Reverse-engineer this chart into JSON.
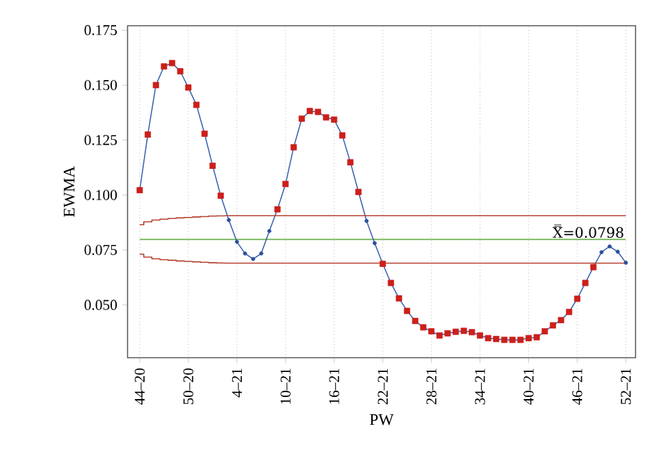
{
  "chart_data": {
    "type": "line",
    "xlabel": "PW",
    "ylabel": "EWMA",
    "categories": [
      "44–20",
      null,
      null,
      null,
      null,
      null,
      "50–20",
      null,
      null,
      null,
      null,
      null,
      "4–21",
      null,
      null,
      null,
      null,
      null,
      "10–21",
      null,
      null,
      null,
      null,
      null,
      "16–21",
      null,
      null,
      null,
      null,
      null,
      "22–21",
      null,
      null,
      null,
      null,
      null,
      "28–21",
      null,
      null,
      null,
      null,
      null,
      "34–21",
      null,
      null,
      null,
      null,
      null,
      "40–21",
      null,
      null,
      null,
      null,
      null,
      "46–21",
      null,
      null,
      null,
      null,
      null,
      "52–21"
    ],
    "series": [
      {
        "color": "#3a62b0",
        "marker": "none",
        "values": [
          0.1022,
          0.1275,
          0.15,
          0.1585,
          0.16,
          0.1563,
          0.1489,
          0.141,
          0.1279,
          0.1133,
          0.0997,
          0.0886,
          0.0787,
          0.0734,
          0.0709,
          0.0734,
          0.0836,
          0.0935,
          0.105,
          0.1217,
          0.1347,
          0.1382,
          0.1378,
          0.1353,
          0.1343,
          0.1271,
          0.1149,
          0.1014,
          0.0882,
          0.0781,
          0.0687,
          0.06,
          0.053,
          0.0473,
          0.0427,
          0.0398,
          0.038,
          0.0361,
          0.0371,
          0.0378,
          0.0382,
          0.0376,
          0.0361,
          0.0349,
          0.0345,
          0.0341,
          0.0341,
          0.0341,
          0.0349,
          0.0353,
          0.038,
          0.0407,
          0.0431,
          0.0468,
          0.0528,
          0.06,
          0.0672,
          0.074,
          0.0766,
          0.0742,
          0.0692
        ]
      },
      {
        "type": "scatter",
        "color": "#2a4f9e",
        "marker": "circle",
        "values": [
          null,
          null,
          null,
          null,
          null,
          null,
          null,
          null,
          null,
          null,
          null,
          0.0886,
          0.0787,
          0.0734,
          0.0709,
          0.0734,
          0.0836,
          null,
          null,
          null,
          null,
          null,
          null,
          null,
          null,
          null,
          null,
          null,
          0.0882,
          0.0781,
          null,
          null,
          null,
          null,
          null,
          null,
          null,
          null,
          null,
          null,
          null,
          null,
          null,
          null,
          null,
          null,
          null,
          null,
          null,
          null,
          null,
          null,
          null,
          null,
          null,
          null,
          null,
          0.074,
          0.0766,
          0.0742,
          0.0692
        ]
      },
      {
        "type": "scatter",
        "color": "#cc1f1a",
        "marker": "square",
        "values": [
          0.1022,
          0.1275,
          0.15,
          0.1585,
          0.16,
          0.1563,
          0.1489,
          0.141,
          0.1279,
          0.1133,
          0.0997,
          null,
          null,
          null,
          null,
          null,
          null,
          0.0935,
          0.105,
          0.1217,
          0.1347,
          0.1382,
          0.1378,
          0.1353,
          0.1343,
          0.1271,
          0.1149,
          0.1014,
          null,
          null,
          0.0687,
          0.06,
          0.053,
          0.0473,
          0.0427,
          0.0398,
          0.038,
          0.0361,
          0.0371,
          0.0378,
          0.0382,
          0.0376,
          0.0361,
          0.0349,
          0.0345,
          0.0341,
          0.0341,
          0.0341,
          0.0349,
          0.0353,
          0.038,
          0.0407,
          0.0431,
          0.0468,
          0.0528,
          0.06,
          0.0672,
          null,
          null,
          null,
          null
        ]
      },
      {
        "type": "step",
        "color": "#b5402f",
        "marker": "none",
        "values": [
          0.0865,
          0.0878,
          0.0886,
          0.089,
          0.0893,
          0.0896,
          0.0898,
          0.09,
          0.0902,
          0.0904,
          0.0905,
          0.0906,
          0.0906,
          0.0906,
          0.0906,
          0.0906,
          0.0906,
          0.0906,
          0.0906,
          0.0906,
          0.0906,
          0.0906,
          0.0906,
          0.0906,
          0.0906,
          0.0906,
          0.0906,
          0.0906,
          0.0906,
          0.0906,
          0.0906,
          0.0906,
          0.0906,
          0.0906,
          0.0906,
          0.0906,
          0.0906,
          0.0906,
          0.0906,
          0.0906,
          0.0906,
          0.0906,
          0.0906,
          0.0906,
          0.0906,
          0.0906,
          0.0906,
          0.0906,
          0.0906,
          0.0906,
          0.0906,
          0.0906,
          0.0906,
          0.0906,
          0.0906,
          0.0906,
          0.0906,
          0.0906,
          0.0906,
          0.0906,
          0.0906
        ]
      },
      {
        "type": "step",
        "color": "#b5402f",
        "marker": "none",
        "values": [
          0.0731,
          0.0718,
          0.071,
          0.0706,
          0.0703,
          0.07,
          0.0698,
          0.0696,
          0.0694,
          0.0692,
          0.0691,
          0.069,
          0.069,
          0.069,
          0.069,
          0.069,
          0.069,
          0.069,
          0.069,
          0.069,
          0.069,
          0.069,
          0.069,
          0.069,
          0.069,
          0.069,
          0.069,
          0.069,
          0.069,
          0.069,
          0.069,
          0.069,
          0.069,
          0.069,
          0.069,
          0.069,
          0.069,
          0.069,
          0.069,
          0.069,
          0.069,
          0.069,
          0.069,
          0.069,
          0.069,
          0.069,
          0.069,
          0.069,
          0.069,
          0.069,
          0.069,
          0.069,
          0.069,
          0.069,
          0.069,
          0.069,
          0.069,
          0.069,
          0.069,
          0.069,
          0.069
        ]
      }
    ],
    "ref_lines": [
      {
        "axis": "y",
        "value": 0.0798,
        "label": "X̿=0.0798",
        "color": "#6ab04c"
      }
    ],
    "ylim": [
      0.026,
      0.177
    ],
    "yticks": [
      {
        "value": 0.05,
        "label": "0.050"
      },
      {
        "value": 0.075,
        "label": "0.075"
      },
      {
        "value": 0.1,
        "label": "0.100"
      },
      {
        "value": 0.125,
        "label": "0.125"
      },
      {
        "value": 0.15,
        "label": "0.150"
      },
      {
        "value": 0.175,
        "label": "0.175"
      }
    ],
    "grid": "x"
  }
}
